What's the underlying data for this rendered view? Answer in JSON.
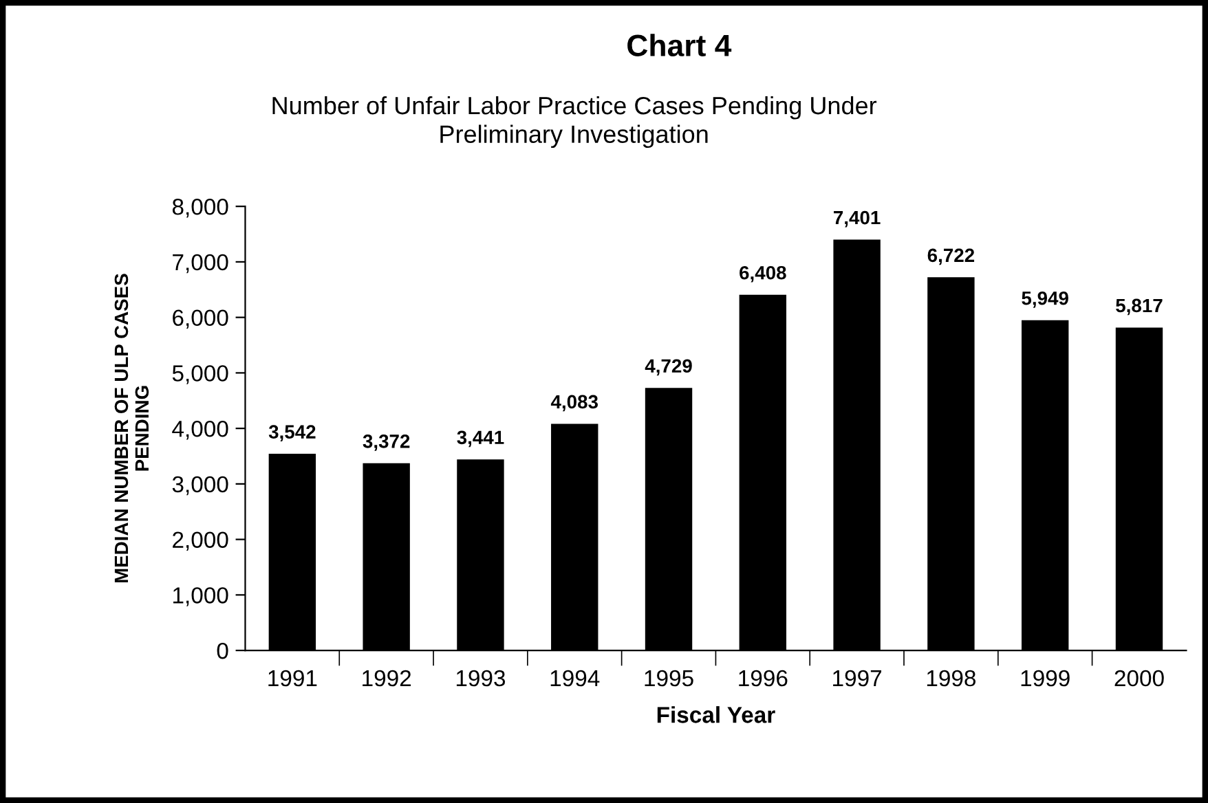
{
  "chart_data": {
    "type": "bar",
    "title": "Chart 4",
    "subtitle": "Number of Unfair Labor Practice Cases Pending Under\nPreliminary Investigation",
    "xlabel": "Fiscal Year",
    "ylabel": "MEDIAN NUMBER OF ULP CASES\nPENDING",
    "categories": [
      "1991",
      "1992",
      "1993",
      "1994",
      "1995",
      "1996",
      "1997",
      "1998",
      "1999",
      "2000"
    ],
    "values": [
      3542,
      3372,
      3441,
      4083,
      4729,
      6408,
      7401,
      6722,
      5949,
      5817
    ],
    "value_labels": [
      "3,542",
      "3,372",
      "3,441",
      "4,083",
      "4,729",
      "6,408",
      "7,401",
      "6,722",
      "5,949",
      "5,817"
    ],
    "color": "#000000",
    "ylim": [
      0,
      8000
    ],
    "yticks": [
      {
        "value": 0,
        "label": "0"
      },
      {
        "value": 1000,
        "label": "1,000"
      },
      {
        "value": 2000,
        "label": "2,000"
      },
      {
        "value": 3000,
        "label": "3,000"
      },
      {
        "value": 4000,
        "label": "4,000"
      },
      {
        "value": 5000,
        "label": "5,000"
      },
      {
        "value": 6000,
        "label": "6,000"
      },
      {
        "value": 7000,
        "label": "7,000"
      },
      {
        "value": 8000,
        "label": "8,000"
      }
    ],
    "grid": false,
    "legend": false
  }
}
